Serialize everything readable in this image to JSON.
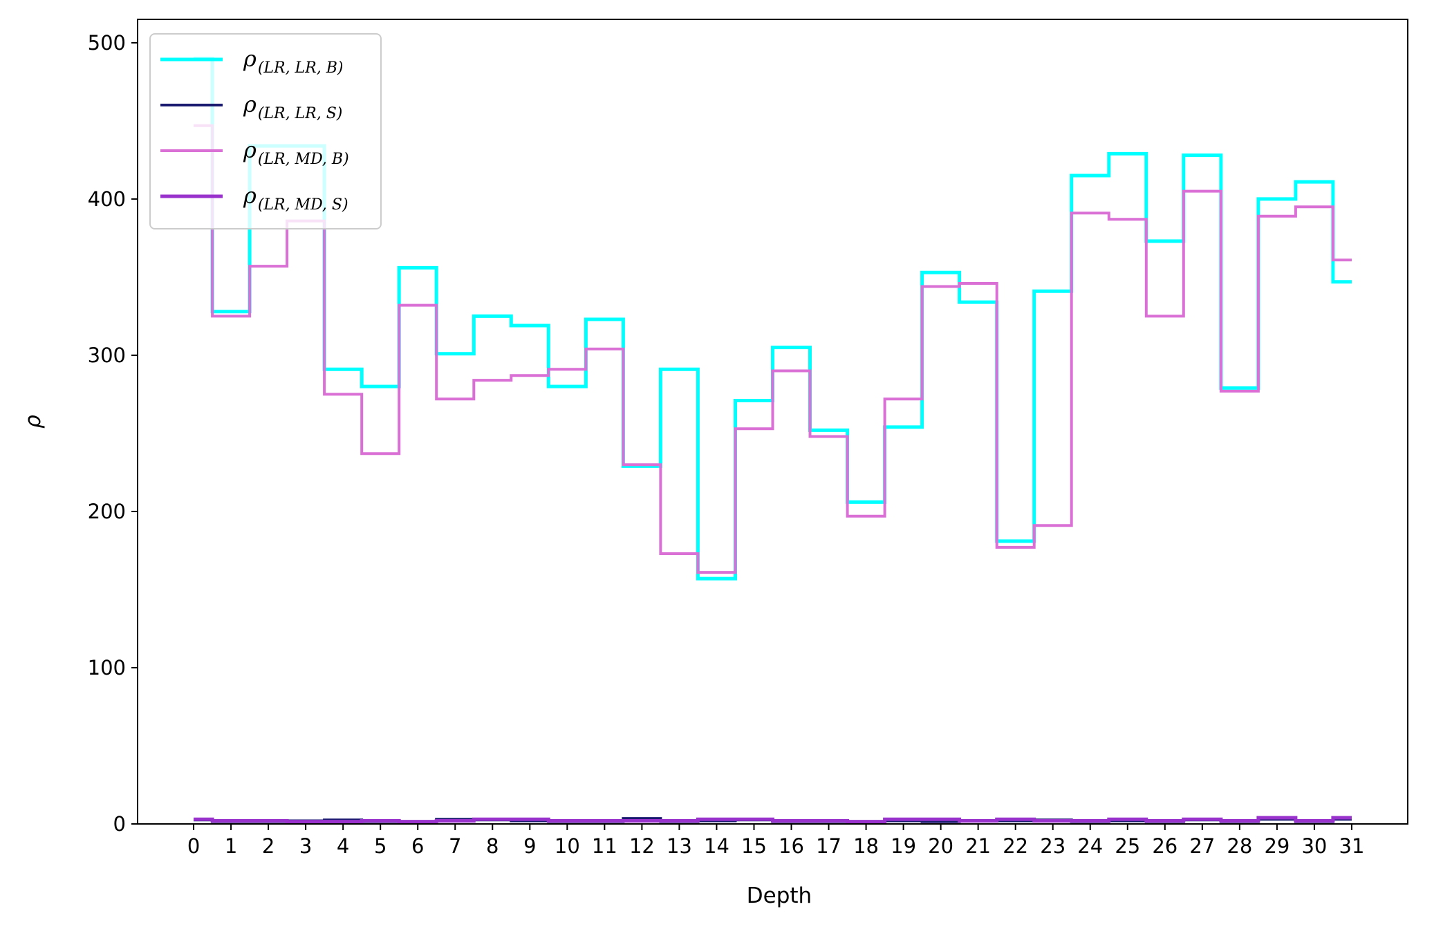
{
  "chart_data": {
    "type": "line",
    "step": "mid",
    "title": "",
    "xlabel": "Depth",
    "ylabel": "ρ",
    "x": [
      0,
      1,
      2,
      3,
      4,
      5,
      6,
      7,
      8,
      9,
      10,
      11,
      12,
      13,
      14,
      15,
      16,
      17,
      18,
      19,
      20,
      21,
      22,
      23,
      24,
      25,
      26,
      27,
      28,
      29,
      30,
      31
    ],
    "x_ticks": [
      "0",
      "1",
      "2",
      "3",
      "4",
      "5",
      "6",
      "7",
      "8",
      "9",
      "10",
      "11",
      "12",
      "13",
      "14",
      "15",
      "16",
      "17",
      "18",
      "19",
      "20",
      "21",
      "22",
      "23",
      "24",
      "25",
      "26",
      "27",
      "28",
      "29",
      "30",
      "31"
    ],
    "ylim": [
      0,
      515
    ],
    "y_ticks": [
      0,
      100,
      200,
      300,
      400,
      500
    ],
    "grid": false,
    "legend": "top-left",
    "series": [
      {
        "name": "ρ(LR, LR, B)",
        "name_main": "ρ",
        "name_sub": "(LR, LR, B)",
        "color": "#00ffff",
        "width": 5,
        "values": [
          490,
          328,
          434,
          434,
          291,
          280,
          356,
          301,
          325,
          319,
          280,
          323,
          229,
          291,
          157,
          271,
          305,
          252,
          206,
          254,
          353,
          334,
          181,
          341,
          415,
          429,
          373,
          428,
          279,
          400,
          411,
          347
        ]
      },
      {
        "name": "ρ(LR, LR, S)",
        "name_main": "ρ",
        "name_sub": "(LR, LR, S)",
        "color": "#191970",
        "width": 4,
        "values": [
          2.5,
          1.5,
          1.5,
          2,
          2.5,
          1.5,
          1,
          3,
          2.5,
          2,
          1.5,
          1.5,
          3.5,
          1.5,
          2,
          2.5,
          1.5,
          1.5,
          1,
          2,
          1.5,
          2,
          2,
          2.5,
          1.5,
          2,
          1.5,
          2.5,
          1.5,
          3,
          1.5,
          3
        ]
      },
      {
        "name": "ρ(LR, MD, B)",
        "name_main": "ρ",
        "name_sub": "(LR, MD, B)",
        "color": "#da70d6",
        "width": 4,
        "values": [
          447,
          325,
          357,
          386,
          275,
          237,
          332,
          272,
          284,
          287,
          291,
          304,
          230,
          173,
          161,
          253,
          290,
          248,
          197,
          272,
          344,
          346,
          177,
          191,
          391,
          387,
          325,
          405,
          277,
          389,
          395,
          361
        ]
      },
      {
        "name": "ρ(LR, MD, S)",
        "name_main": "ρ",
        "name_sub": "(LR, MD, S)",
        "color": "#9932cc",
        "width": 5,
        "values": [
          3,
          2,
          2,
          1.5,
          1.5,
          2,
          1.5,
          2,
          3,
          3,
          2,
          2,
          2,
          2,
          3,
          3,
          2,
          2,
          1.5,
          3,
          3,
          2,
          3,
          2,
          2,
          3,
          2,
          3,
          2,
          4,
          2,
          4
        ]
      }
    ]
  }
}
